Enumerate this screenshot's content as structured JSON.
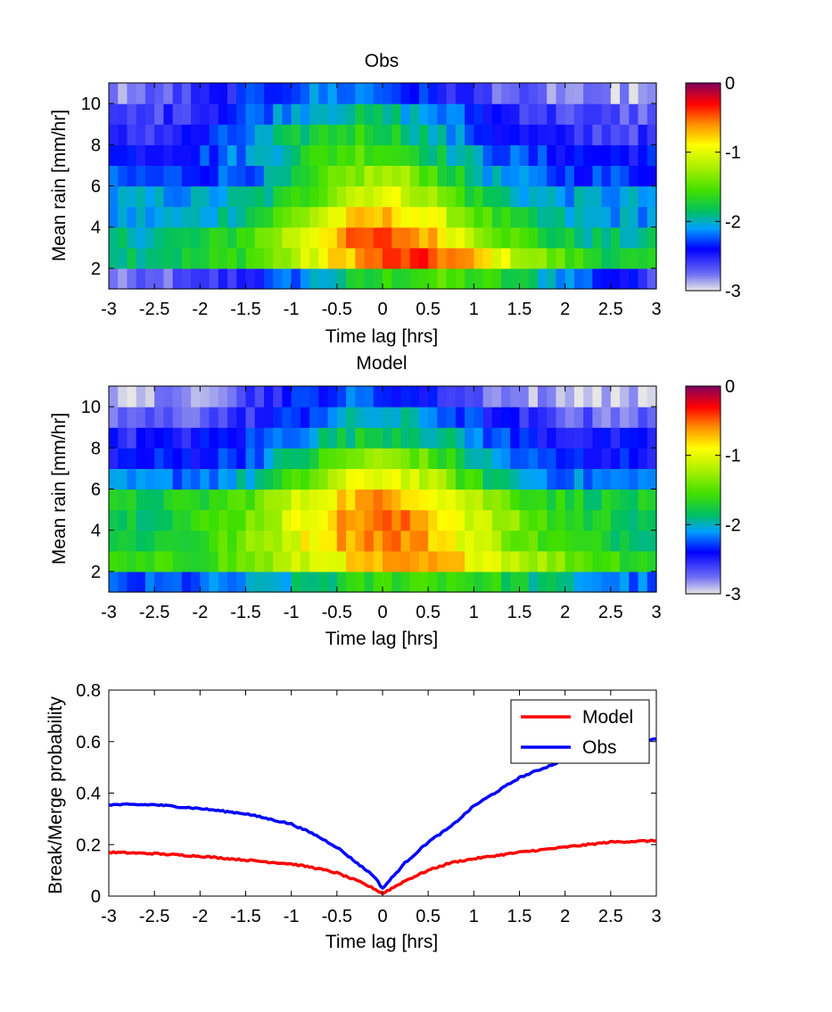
{
  "chart_data": [
    {
      "type": "heatmap",
      "title": "Obs",
      "xlabel": "Time lag [hrs]",
      "ylabel": "Mean rain [mm/hr]",
      "xlim": [
        -3,
        3
      ],
      "ylim": [
        1,
        11
      ],
      "xticks": [
        "-3",
        "-2.5",
        "-2",
        "-1.5",
        "-1",
        "-0.5",
        "0",
        "0.5",
        "1",
        "1.5",
        "2",
        "2.5",
        "3"
      ],
      "yticks": [
        "2",
        "4",
        "6",
        "8",
        "10"
      ],
      "colorbar": {
        "range": [
          -3,
          0
        ],
        "ticks": [
          "0",
          "-1",
          "-2",
          "-3"
        ]
      },
      "n_time_bins": 60,
      "rows": [
        {
          "rain": 1.5,
          "peak_lag": 0.6,
          "peak_value": -1.55,
          "width": 1.9,
          "edge_value": -2.85
        },
        {
          "rain": 2.5,
          "peak_lag": 0.3,
          "peak_value": -0.42,
          "width": 1.4,
          "edge_value": -1.85
        },
        {
          "rain": 3.5,
          "peak_lag": 0.0,
          "peak_value": -0.48,
          "width": 1.3,
          "edge_value": -1.95
        },
        {
          "rain": 4.5,
          "peak_lag": 0.0,
          "peak_value": -0.75,
          "width": 1.2,
          "edge_value": -2.1
        },
        {
          "rain": 5.5,
          "peak_lag": 0.0,
          "peak_value": -1.0,
          "width": 1.0,
          "edge_value": -2.1
        },
        {
          "rain": 6.5,
          "peak_lag": 0.0,
          "peak_value": -1.25,
          "width": 1.0,
          "edge_value": -2.3
        },
        {
          "rain": 7.5,
          "peak_lag": -0.2,
          "peak_value": -1.5,
          "width": 1.2,
          "edge_value": -2.4
        },
        {
          "rain": 8.5,
          "peak_lag": -0.3,
          "peak_value": -1.65,
          "width": 1.3,
          "edge_value": -2.6
        },
        {
          "rain": 9.5,
          "peak_lag": -0.3,
          "peak_value": -1.9,
          "width": 1.5,
          "edge_value": -2.7
        },
        {
          "rain": 10.5,
          "peak_lag": -0.5,
          "peak_value": -2.15,
          "width": 1.6,
          "edge_value": -2.9
        }
      ]
    },
    {
      "type": "heatmap",
      "title": "Model",
      "xlabel": "Time lag [hrs]",
      "ylabel": "Mean rain [mm/hr]",
      "xlim": [
        -3,
        3
      ],
      "ylim": [
        1,
        11
      ],
      "xticks": [
        "-3",
        "-2.5",
        "-2",
        "-1.5",
        "-1",
        "-0.5",
        "0",
        "0.5",
        "1",
        "1.5",
        "2",
        "2.5",
        "3"
      ],
      "yticks": [
        "2",
        "4",
        "6",
        "8",
        "10"
      ],
      "colorbar": {
        "range": [
          -3,
          0
        ],
        "ticks": [
          "0",
          "-1",
          "-2",
          "-3"
        ]
      },
      "n_time_bins": 60,
      "rows": [
        {
          "rain": 1.5,
          "peak_lag": 0.5,
          "peak_value": -1.55,
          "width": 1.6,
          "edge_value": -2.3
        },
        {
          "rain": 2.5,
          "peak_lag": 0.3,
          "peak_value": -0.7,
          "width": 1.6,
          "edge_value": -1.7
        },
        {
          "rain": 3.5,
          "peak_lag": 0.0,
          "peak_value": -0.55,
          "width": 1.4,
          "edge_value": -1.8
        },
        {
          "rain": 4.5,
          "peak_lag": 0.0,
          "peak_value": -0.55,
          "width": 1.4,
          "edge_value": -1.8
        },
        {
          "rain": 5.5,
          "peak_lag": 0.0,
          "peak_value": -0.65,
          "width": 1.3,
          "edge_value": -1.8
        },
        {
          "rain": 6.5,
          "peak_lag": 0.0,
          "peak_value": -0.95,
          "width": 1.1,
          "edge_value": -2.2
        },
        {
          "rain": 7.5,
          "peak_lag": 0.0,
          "peak_value": -1.3,
          "width": 1.1,
          "edge_value": -2.4
        },
        {
          "rain": 8.5,
          "peak_lag": 0.0,
          "peak_value": -1.75,
          "width": 1.2,
          "edge_value": -2.5
        },
        {
          "rain": 9.5,
          "peak_lag": 0.0,
          "peak_value": -2.0,
          "width": 1.3,
          "edge_value": -2.75
        },
        {
          "rain": 10.5,
          "peak_lag": -0.3,
          "peak_value": -2.25,
          "width": 1.4,
          "edge_value": -2.95
        }
      ]
    },
    {
      "type": "line",
      "xlabel": "Time lag [hrs]",
      "ylabel": "Break/Merge probability",
      "xlim": [
        -3,
        3
      ],
      "ylim": [
        0,
        0.8
      ],
      "xticks": [
        "-3",
        "-2.5",
        "-2",
        "-1.5",
        "-1",
        "-0.5",
        "0",
        "0.5",
        "1",
        "1.5",
        "2",
        "2.5",
        "3"
      ],
      "yticks": [
        "0",
        "0.2",
        "0.4",
        "0.6",
        "0.8"
      ],
      "legend": "top-right",
      "x": [
        -3,
        -2.5,
        -2,
        -1.5,
        -1,
        -0.75,
        -0.5,
        -0.25,
        -0.1,
        0,
        0.1,
        0.25,
        0.5,
        0.75,
        1,
        1.5,
        2,
        2.5,
        3
      ],
      "series": [
        {
          "name": "Model",
          "color": "#ff0000",
          "values": [
            0.17,
            0.165,
            0.155,
            0.14,
            0.125,
            0.11,
            0.09,
            0.055,
            0.03,
            0.01,
            0.03,
            0.06,
            0.1,
            0.13,
            0.145,
            0.17,
            0.19,
            0.21,
            0.215
          ]
        },
        {
          "name": "Obs",
          "color": "#0000ff",
          "values": [
            0.355,
            0.355,
            0.34,
            0.32,
            0.28,
            0.24,
            0.19,
            0.12,
            0.08,
            0.03,
            0.07,
            0.13,
            0.21,
            0.27,
            0.35,
            0.46,
            0.53,
            0.58,
            0.61
          ]
        }
      ]
    }
  ]
}
